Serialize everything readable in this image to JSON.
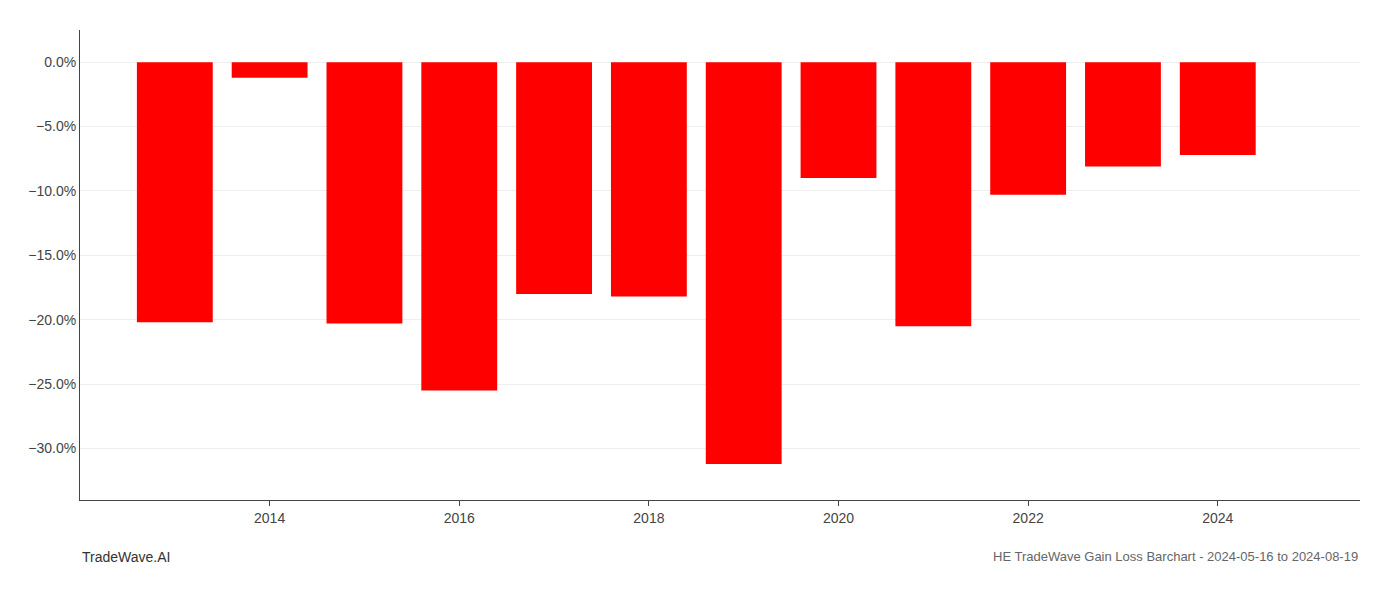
{
  "chart_data": {
    "type": "bar",
    "x": [
      2013,
      2014,
      2015,
      2016,
      2017,
      2018,
      2019,
      2020,
      2021,
      2022,
      2023,
      2024
    ],
    "values": [
      -20.2,
      -1.2,
      -20.3,
      -25.5,
      -18.0,
      -18.2,
      -31.2,
      -9.0,
      -20.5,
      -10.3,
      -8.1,
      -7.2
    ],
    "color": "#ff0000",
    "xlim": [
      2012.0,
      2025.5
    ],
    "xticks": [
      2014,
      2016,
      2018,
      2020,
      2022,
      2024
    ],
    "ylim": [
      -34.0,
      2.5
    ],
    "yticks": [
      {
        "value": 0.0,
        "label": "0.0%"
      },
      {
        "value": -5.0,
        "label": "−5.0%"
      },
      {
        "value": -10.0,
        "label": "−10.0%"
      },
      {
        "value": -15.0,
        "label": "−15.0%"
      },
      {
        "value": -20.0,
        "label": "−20.0%"
      },
      {
        "value": -25.0,
        "label": "−25.0%"
      },
      {
        "value": -30.0,
        "label": "−30.0%"
      }
    ],
    "grid": "y",
    "annotations": [
      "TradeWave.AI",
      "HE TradeWave Gain Loss Barchart - 2024-05-16 to 2024-08-19"
    ]
  }
}
